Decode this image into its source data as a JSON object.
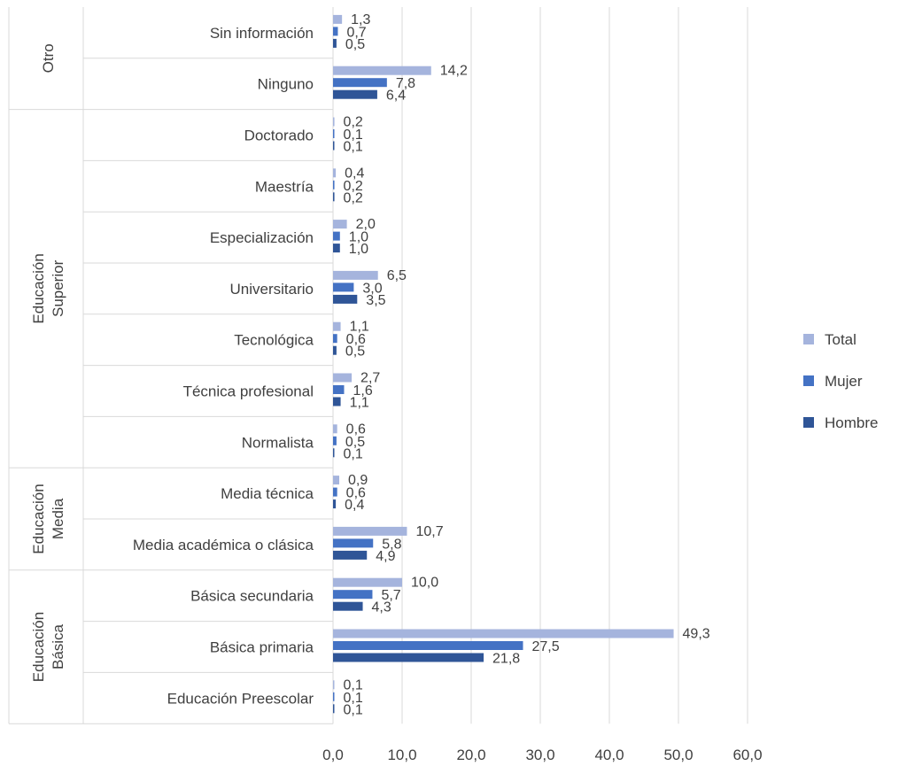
{
  "chart_data": {
    "type": "bar",
    "orientation": "horizontal",
    "title": "",
    "xlabel": "",
    "ylabel": "",
    "xlim": [
      0,
      60
    ],
    "x_ticks": [
      "0,0",
      "10,0",
      "20,0",
      "30,0",
      "40,0",
      "50,0",
      "60,0"
    ],
    "grid": "vertical",
    "legend_position": "right",
    "groups": [
      {
        "label": "Otro",
        "label_lines": [
          "Otro"
        ],
        "categories": [
          "Sin información",
          "Ninguno"
        ]
      },
      {
        "label": "Educación Superior",
        "label_lines": [
          "Educación",
          "Superior"
        ],
        "categories": [
          "Doctorado",
          "Maestría",
          "Especialización",
          "Universitario",
          "Tecnológica",
          "Técnica profesional",
          "Normalista"
        ]
      },
      {
        "label": "Educación Media",
        "label_lines": [
          "Educación",
          "Media"
        ],
        "categories": [
          "Media técnica",
          "Media académica o clásica"
        ]
      },
      {
        "label": "Educación Básica",
        "label_lines": [
          "Educación",
          "Básica"
        ],
        "categories": [
          "Básica secundaria",
          "Básica primaria",
          "Educación Preescolar"
        ]
      }
    ],
    "categories": [
      "Sin información",
      "Ninguno",
      "Doctorado",
      "Maestría",
      "Especialización",
      "Universitario",
      "Tecnológica",
      "Técnica profesional",
      "Normalista",
      "Media técnica",
      "Media académica o clásica",
      "Básica secundaria",
      "Básica primaria",
      "Educación Preescolar"
    ],
    "series": [
      {
        "name": "Total",
        "color": "#A5B4DD",
        "values": [
          1.3,
          14.2,
          0.2,
          0.4,
          2.0,
          6.5,
          1.1,
          2.7,
          0.6,
          0.9,
          10.7,
          10.0,
          49.3,
          0.1
        ],
        "labels": [
          "1,3",
          "14,2",
          "0,2",
          "0,4",
          "2,0",
          "6,5",
          "1,1",
          "2,7",
          "0,6",
          "0,9",
          "10,7",
          "10,0",
          "49,3",
          "0,1"
        ]
      },
      {
        "name": "Mujer",
        "color": "#4472C4",
        "values": [
          0.7,
          7.8,
          0.1,
          0.2,
          1.0,
          3.0,
          0.6,
          1.6,
          0.5,
          0.6,
          5.8,
          5.7,
          27.5,
          0.1
        ],
        "labels": [
          "0,7",
          "7,8",
          "0,1",
          "0,2",
          "1,0",
          "3,0",
          "0,6",
          "1,6",
          "0,5",
          "0,6",
          "5,8",
          "5,7",
          "27,5",
          "0,1"
        ]
      },
      {
        "name": "Hombre",
        "color": "#2F5597",
        "values": [
          0.5,
          6.4,
          0.1,
          0.2,
          1.0,
          3.5,
          0.5,
          1.1,
          0.1,
          0.4,
          4.9,
          4.3,
          21.8,
          0.1
        ],
        "labels": [
          "0,5",
          "6,4",
          "0,1",
          "0,2",
          "1,0",
          "3,5",
          "0,5",
          "1,1",
          "0,1",
          "0,4",
          "4,9",
          "4,3",
          "21,8",
          "0,1"
        ]
      }
    ],
    "legend_order": [
      "Total",
      "Mujer",
      "Hombre"
    ]
  }
}
